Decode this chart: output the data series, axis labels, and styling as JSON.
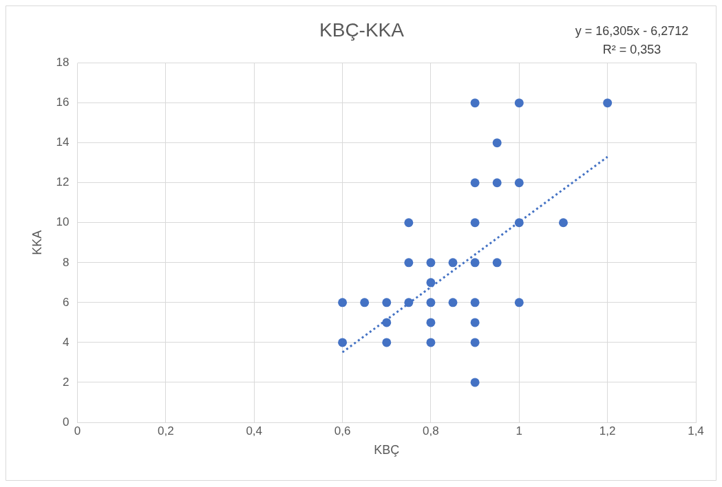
{
  "chart_data": {
    "type": "scatter",
    "title": "KBÇ-KKA",
    "xlabel": "KBÇ",
    "ylabel": "KKA",
    "annotations": [
      "y = 16,305x - 6,2712",
      "R² = 0,353"
    ],
    "xlim": [
      0,
      1.4
    ],
    "xticks": [
      0,
      {
        "value": 0.2,
        "label": "0,2"
      },
      {
        "value": 0.4,
        "label": "0,4"
      },
      {
        "value": 0.6,
        "label": "0,6"
      },
      {
        "value": 0.8,
        "label": "0,8"
      },
      1,
      {
        "value": 1.2,
        "label": "1,2"
      },
      {
        "value": 1.4,
        "label": "1,4"
      }
    ],
    "ylim": [
      0,
      18
    ],
    "yticks": [
      0,
      2,
      4,
      6,
      8,
      10,
      12,
      14,
      16,
      18
    ],
    "grid": true,
    "legend": false,
    "marker": "circle",
    "series": [
      {
        "type": "scatter",
        "color": "#4472c4",
        "x": [
          0.6,
          0.6,
          0.65,
          0.7,
          0.7,
          0.7,
          0.75,
          0.75,
          0.75,
          0.8,
          0.8,
          0.8,
          0.8,
          0.8,
          0.85,
          0.85,
          0.9,
          0.9,
          0.9,
          0.9,
          0.9,
          0.9,
          0.9,
          0.9,
          0.95,
          0.95,
          0.95,
          1,
          1,
          1,
          1,
          1.1,
          1.2
        ],
        "values": [
          6,
          4,
          6,
          6,
          5,
          4,
          10,
          8,
          6,
          8,
          7,
          6,
          5,
          4,
          8,
          6,
          16,
          12,
          10,
          8,
          6,
          5,
          4,
          2,
          14,
          12,
          8,
          16,
          12,
          10,
          6,
          10,
          16
        ]
      },
      {
        "type": "line",
        "color": "#4472c4",
        "x": [
          0.6,
          1.2
        ],
        "values": [
          3.51,
          13.3
        ],
        "line_style": "dotted",
        "marker": "none"
      }
    ]
  }
}
